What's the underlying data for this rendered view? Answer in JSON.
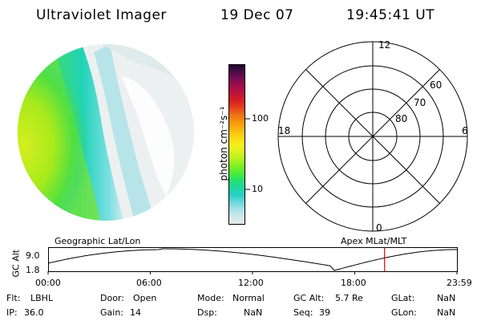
{
  "header": {
    "instrument": "Ultraviolet Imager",
    "date": "19 Dec 07",
    "time": "19:45:41 UT"
  },
  "colorbar": {
    "unit_label": "photon cm⁻²s⁻¹",
    "ticks": [
      "100",
      "10"
    ],
    "colors": [
      "#e6ecec",
      "#cde8ea",
      "#a9e1e6",
      "#6fd7dc",
      "#27cfc6",
      "#1ed7a0",
      "#24e070",
      "#4ceb3a",
      "#7ef020",
      "#b1f31e",
      "#dcf21d",
      "#f7ef1c",
      "#f9d814",
      "#f8b90d",
      "#f7990a",
      "#f07416",
      "#e8451f",
      "#d81f1e",
      "#c0143b",
      "#a30f4b",
      "#7b0d52",
      "#4b0d48",
      "#1e0630"
    ]
  },
  "polar_plot": {
    "clock_labels": [
      "12",
      "18",
      "6",
      "0"
    ],
    "lat_labels": [
      "60",
      "70",
      "80"
    ]
  },
  "timeline": {
    "ylabel": "GC Alt",
    "ymax": "9.0",
    "ymin": "1.8",
    "left_label": "Geographic Lat/Lon",
    "right_label": "Apex MLat/MLT",
    "xticks": [
      "00:00",
      "06:00",
      "12:00",
      "18:00",
      "23:59"
    ],
    "current_time_fraction": 0.823
  },
  "status": {
    "row1": [
      {
        "key": "Flt:",
        "value": "LBHL"
      },
      {
        "key": "Door:",
        "value": "Open"
      },
      {
        "key": "Mode:",
        "value": "Normal"
      },
      {
        "key": "GC Alt:",
        "value": "5.7 Re"
      },
      {
        "key": "GLat:",
        "value": "NaN"
      }
    ],
    "row2": [
      {
        "key": "IP:",
        "value": "36.0"
      },
      {
        "key": "Gain:",
        "value": "14"
      },
      {
        "key": "Dsp:",
        "value": "NaN"
      },
      {
        "key": "Seq:",
        "value": "39"
      },
      {
        "key": "GLon:",
        "value": "NaN"
      }
    ]
  }
}
